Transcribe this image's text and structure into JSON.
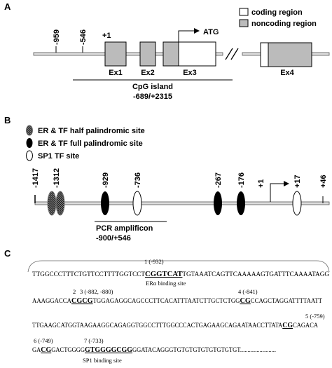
{
  "panel_a": {
    "label": "A",
    "positions": [
      "-959",
      "-546"
    ],
    "start": "+1",
    "atg": "ATG",
    "legend": [
      "coding region",
      "noncoding region"
    ],
    "exons": [
      "Ex1",
      "Ex2",
      "Ex3",
      "Ex4"
    ],
    "cpg_title": "CpG island",
    "cpg_range": "-689/+2315"
  },
  "panel_b": {
    "label": "B",
    "legend": [
      "ER & TF half palindromic site",
      "ER & TF full palindromic site",
      "SP1 TF site"
    ],
    "sites": [
      "-1417",
      "-1312",
      "-929",
      "-736",
      "-267",
      "-176",
      "+1",
      "+17",
      "+46"
    ],
    "pcr_title": "PCR amplificon",
    "pcr_range": "-900/+546"
  },
  "panel_c": {
    "label": "C",
    "lines": [
      {
        "segments": [
          "TTGGCCCTTTCTGTTCCTTTTGGTCCT",
          "CGGTCAT",
          "TGTAAATCAGTTCAAAAAGTGATTTCAAAATAGG"
        ],
        "notes": [
          "1 (-932)",
          "ERα binding site"
        ]
      },
      {
        "segments": [
          "AAAGGACCA",
          "CGCG",
          "TGGAGAGGCAGCCCTTCACATTTAATCTTGCTCTGG",
          "CG",
          "CCAGCTAGGATTTTAATT"
        ],
        "notes": [
          "2",
          "3 (-882, -880)",
          "4 (-841)"
        ]
      },
      {
        "segments": [
          "TTGAAGCATGGTAAGAAGGCAGAGGTGGCCTTTGGCCCACTGAGAAGCAGAATAACCTTATA",
          "CG",
          "CAGACA"
        ],
        "notes": [
          "5 (-759)"
        ]
      },
      {
        "segments": [
          "GA",
          "CG",
          "GACTGGGG",
          "GTGGGGCGG",
          "GGATACAGGGTGTGTGTGTGTGTGTGT........................"
        ],
        "notes": [
          "6 (-749)",
          "7 (-733)",
          "SP1 binding site"
        ]
      }
    ]
  }
}
